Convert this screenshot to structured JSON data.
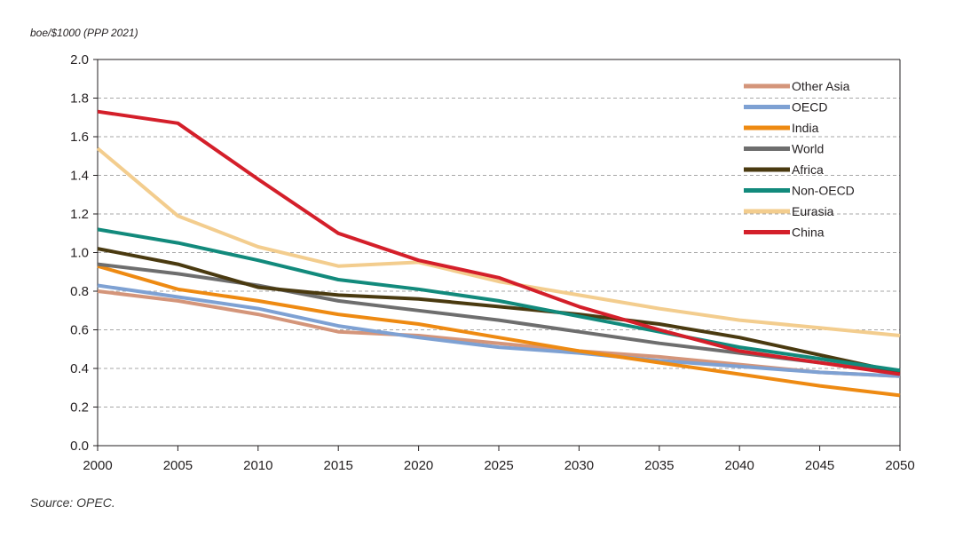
{
  "chart_data": {
    "type": "line",
    "ylabel": "boe/$1000  (PPP 2021)",
    "xlabel": "",
    "title": "",
    "source": "Source: OPEC.",
    "x": [
      2000,
      2005,
      2010,
      2015,
      2020,
      2025,
      2030,
      2035,
      2040,
      2045,
      2050
    ],
    "xlim": [
      2000,
      2050
    ],
    "ylim": [
      0,
      2.0
    ],
    "yticks": [
      0.0,
      0.2,
      0.4,
      0.6,
      0.8,
      1.0,
      1.2,
      1.4,
      1.6,
      1.8,
      2.0
    ],
    "ytick_labels": [
      "0.0",
      "0.2",
      "0.4",
      "0.6",
      "0.8",
      "1.0",
      "1.2",
      "1.4",
      "1.6",
      "1.8",
      "2.0"
    ],
    "xtick_labels": [
      "2000",
      "2005",
      "2010",
      "2015",
      "2020",
      "2025",
      "2030",
      "2035",
      "2040",
      "2045",
      "2050"
    ],
    "grid": "horizontal dashed",
    "legend_position": "top-right",
    "series": [
      {
        "name": "Other Asia",
        "color": "#d4957a",
        "values": [
          0.8,
          0.75,
          0.68,
          0.59,
          0.57,
          0.53,
          0.49,
          0.46,
          0.42,
          0.38,
          0.36
        ]
      },
      {
        "name": "OECD",
        "color": "#7ea1d3",
        "values": [
          0.83,
          0.77,
          0.71,
          0.62,
          0.56,
          0.51,
          0.48,
          0.44,
          0.41,
          0.38,
          0.36
        ]
      },
      {
        "name": "India",
        "color": "#ee8a12",
        "values": [
          0.93,
          0.81,
          0.75,
          0.68,
          0.63,
          0.56,
          0.49,
          0.43,
          0.37,
          0.31,
          0.26
        ]
      },
      {
        "name": "World",
        "color": "#6e6e6e",
        "values": [
          0.94,
          0.89,
          0.83,
          0.75,
          0.7,
          0.65,
          0.59,
          0.53,
          0.48,
          0.43,
          0.38
        ]
      },
      {
        "name": "Africa",
        "color": "#4a3a10",
        "values": [
          1.02,
          0.94,
          0.82,
          0.78,
          0.76,
          0.72,
          0.68,
          0.63,
          0.56,
          0.47,
          0.38
        ]
      },
      {
        "name": "Non-OECD",
        "color": "#128a7c",
        "values": [
          1.12,
          1.05,
          0.96,
          0.86,
          0.81,
          0.75,
          0.67,
          0.59,
          0.51,
          0.45,
          0.39
        ]
      },
      {
        "name": "Eurasia",
        "color": "#f3cd8e",
        "values": [
          1.54,
          1.19,
          1.03,
          0.93,
          0.95,
          0.85,
          0.78,
          0.71,
          0.65,
          0.61,
          0.57
        ]
      },
      {
        "name": "China",
        "color": "#d41f2a",
        "values": [
          1.73,
          1.67,
          1.38,
          1.1,
          0.96,
          0.87,
          0.72,
          0.6,
          0.49,
          0.43,
          0.37
        ]
      }
    ]
  }
}
